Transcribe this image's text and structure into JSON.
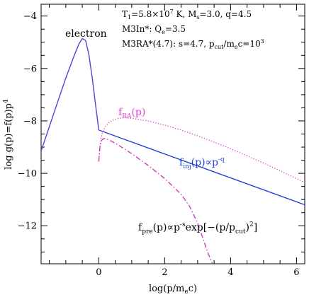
{
  "chart_data": {
    "type": "line",
    "xlabel": "log(p/m",
    "xlabel_sub": "e",
    "xlabel_end": "c)",
    "ylabel": "log g(p)=f(p)p",
    "ylabel_sup": "4",
    "xlim": [
      -1.75,
      6.25
    ],
    "ylim": [
      -13.45,
      -3.55
    ],
    "x_ticks": [
      0,
      2,
      4,
      6
    ],
    "y_ticks": [
      -4,
      -6,
      -8,
      -10,
      -12
    ],
    "x_minor_step": 0.5,
    "y_minor_step": 0.5,
    "colors": {
      "maxwellian": "#5a3fd8",
      "injection": "#1f3fd6",
      "ra": "#e23fd0",
      "pre": "#d23ab8",
      "axes": "#000000"
    },
    "annotations": {
      "electron": "electron",
      "params_line1_a": "T",
      "params_line1_a_sub": "1",
      "params_line1_b": "=5.8×10",
      "params_line1_b_sup": "7",
      "params_line1_c": " K, M",
      "params_line1_c_sub": "s",
      "params_line1_d": "=3.0, q=4.5",
      "params_line2_a": "M3In*: Q",
      "params_line2_a_sub": "e",
      "params_line2_b": "=3.5",
      "params_line3_a": "M3RA*(4.7): s=4.7, p",
      "params_line3_a_sub": "cut",
      "params_line3_b": "/m",
      "params_line3_b_sub": "e",
      "params_line3_c": "c=10",
      "params_line3_c_sup": "3",
      "fra_a": "f",
      "fra_sub": "RA",
      "fra_b": "(p)",
      "finj_a": "f",
      "finj_sub": "inj",
      "finj_b": "(p)∝p",
      "finj_sup": "-q",
      "fpre_a": "f",
      "fpre_sub": "pre",
      "fpre_b": "(p)∝p",
      "fpre_sup": "-s",
      "fpre_c": "exp[−(p/p",
      "fpre_sub2": "cut",
      "fpre_d": ")",
      "fpre_sup2": "2",
      "fpre_e": "]"
    },
    "series": [
      {
        "style": "solid",
        "color_key": "maxwellian",
        "x": [
          -1.75,
          -1.5,
          -1.25,
          -1.0,
          -0.75,
          -0.6,
          -0.5,
          -0.4,
          -0.3,
          -0.2,
          -0.1,
          0.0
        ],
        "y": [
          -9.15,
          -8.22,
          -7.28,
          -6.36,
          -5.52,
          -5.06,
          -4.86,
          -4.93,
          -5.47,
          -6.35,
          -7.36,
          -8.35
        ]
      },
      {
        "style": "solid",
        "color_key": "injection",
        "x": [
          0.0,
          6.25
        ],
        "y": [
          -8.35,
          -11.2
        ]
      },
      {
        "style": "dotted",
        "color_key": "ra",
        "x": [
          0.0,
          0.03,
          0.06,
          0.1,
          0.15,
          0.2,
          0.3,
          0.45,
          0.6,
          0.8,
          1.0,
          1.5,
          2.0,
          2.5,
          3.0,
          3.5,
          4.0,
          4.5,
          5.0,
          5.5,
          6.0,
          6.25
        ],
        "y": [
          -9.55,
          -9.0,
          -8.7,
          -8.5,
          -8.33,
          -8.22,
          -8.07,
          -7.96,
          -7.9,
          -7.88,
          -7.9,
          -8.0,
          -8.16,
          -8.35,
          -8.57,
          -8.81,
          -9.06,
          -9.33,
          -9.61,
          -9.9,
          -10.2,
          -10.35
        ]
      },
      {
        "style": "dashdot",
        "color_key": "pre",
        "x": [
          0.0,
          0.03,
          0.06,
          0.1,
          0.15,
          0.2,
          0.3,
          0.5,
          0.75,
          1.0,
          1.5,
          2.0,
          2.5,
          2.75,
          3.0,
          3.15,
          3.3,
          3.4,
          3.45
        ],
        "y": [
          -9.55,
          -9.05,
          -8.85,
          -8.72,
          -8.68,
          -8.67,
          -8.72,
          -8.85,
          -9.05,
          -9.25,
          -9.7,
          -10.2,
          -10.8,
          -11.25,
          -11.9,
          -12.45,
          -13.0,
          -13.3,
          -13.45
        ]
      }
    ]
  }
}
